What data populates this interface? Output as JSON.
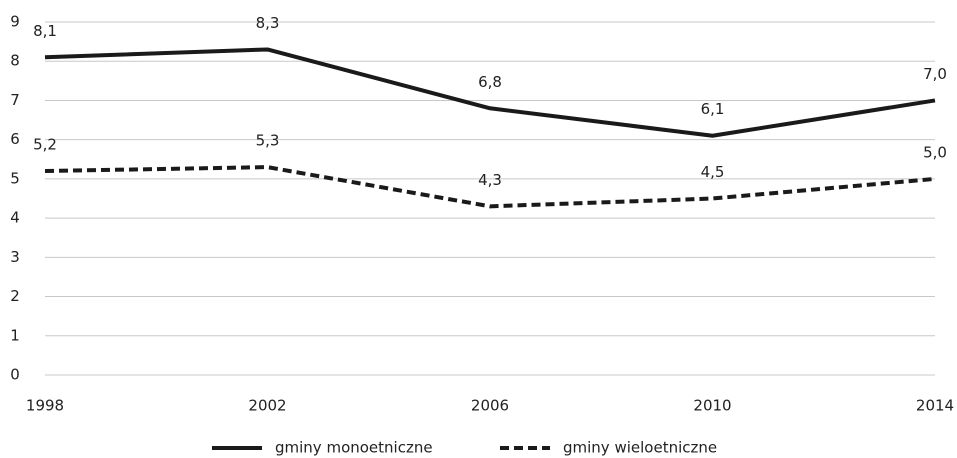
{
  "chart_data": {
    "type": "line",
    "x": [
      1998,
      2002,
      2006,
      2010,
      2014
    ],
    "xlim": [
      1998,
      2014
    ],
    "xticks": [
      1998,
      2002,
      2006,
      2010,
      2014
    ],
    "ylim": [
      0,
      9
    ],
    "yticks": [
      0,
      1,
      2,
      3,
      4,
      5,
      6,
      7,
      8,
      9
    ],
    "grid": true,
    "series": [
      {
        "name": "gminy monoetniczne",
        "color": "#1a1a1a",
        "dash": false,
        "values": [
          8.1,
          8.3,
          6.8,
          6.1,
          7.0
        ],
        "value_labels": [
          "8,1",
          "8,3",
          "6,8",
          "6,1",
          "7,0"
        ]
      },
      {
        "name": "gminy wieloetniczne",
        "color": "#1a1a1a",
        "dash": true,
        "values": [
          5.2,
          5.3,
          4.3,
          4.5,
          5.0
        ],
        "value_labels": [
          "5,2",
          "5,3",
          "4,3",
          "4,5",
          "5,0"
        ]
      }
    ],
    "legend": "bottom"
  }
}
